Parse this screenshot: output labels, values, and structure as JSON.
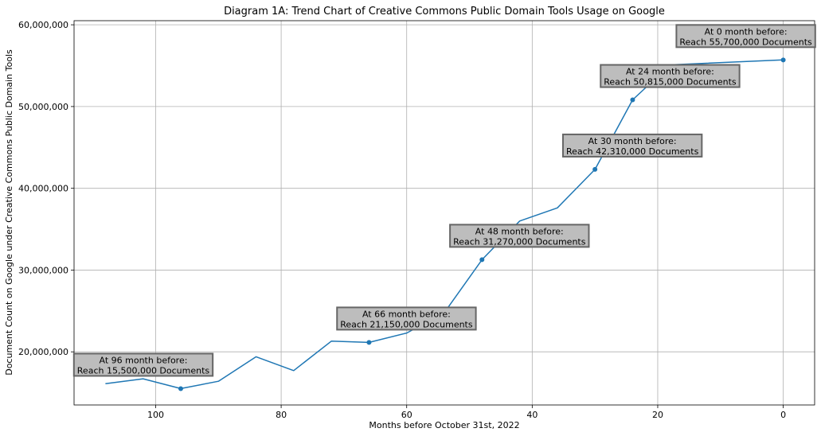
{
  "chart_data": {
    "type": "line",
    "title": "Diagram 1A: Trend Chart of Creative Commons Public Domain Tools Usage on Google",
    "xlabel": "Months before October 31st, 2022",
    "ylabel": "Document Count on Google under Creative Commons Public Domain Tools",
    "x_inverted": true,
    "xlim": [
      113,
      -5
    ],
    "ylim": [
      13500000,
      60500000
    ],
    "grid": true,
    "x_ticks": [
      100,
      80,
      60,
      40,
      20,
      0
    ],
    "x_tick_labels": [
      "100",
      "80",
      "60",
      "40",
      "20",
      "0"
    ],
    "y_ticks": [
      20000000,
      30000000,
      40000000,
      50000000,
      60000000
    ],
    "y_tick_labels": [
      "20,000,000",
      "30,000,000",
      "40,000,000",
      "50,000,000",
      "60,000,000"
    ],
    "line_color": "#1f77b4",
    "series": [
      {
        "x": [
          108,
          102,
          96,
          90,
          84,
          78,
          72,
          66,
          60,
          54,
          48,
          42,
          36,
          30,
          24,
          18,
          0
        ],
        "values": [
          16100000,
          16700000,
          15500000,
          16400000,
          19400000,
          17700000,
          21300000,
          21150000,
          22300000,
          24800000,
          31270000,
          36000000,
          37600000,
          42310000,
          50815000,
          55100000,
          55700000
        ]
      }
    ],
    "markers": [
      {
        "x": 96,
        "y": 15500000
      },
      {
        "x": 66,
        "y": 21150000
      },
      {
        "x": 48,
        "y": 31270000
      },
      {
        "x": 30,
        "y": 42310000
      },
      {
        "x": 24,
        "y": 50815000
      },
      {
        "x": 0,
        "y": 55700000
      }
    ],
    "annotations": [
      {
        "line1": "At 96 month before:",
        "line2": "Reach 15,500,000 Documents",
        "x": 96,
        "y": 15500000
      },
      {
        "line1": "At 66 month before:",
        "line2": "Reach 21,150,000 Documents",
        "x": 66,
        "y": 21150000
      },
      {
        "line1": "At 48 month before:",
        "line2": "Reach 31,270,000 Documents",
        "x": 48,
        "y": 31270000
      },
      {
        "line1": "At 30 month before:",
        "line2": "Reach 42,310,000 Documents",
        "x": 30,
        "y": 42310000
      },
      {
        "line1": "At 24 month before:",
        "line2": "Reach 50,815,000 Documents",
        "x": 24,
        "y": 50815000
      },
      {
        "line1": "At 0 month before:",
        "line2": "Reach 55,700,000 Documents",
        "x": 0,
        "y": 55700000
      }
    ]
  }
}
